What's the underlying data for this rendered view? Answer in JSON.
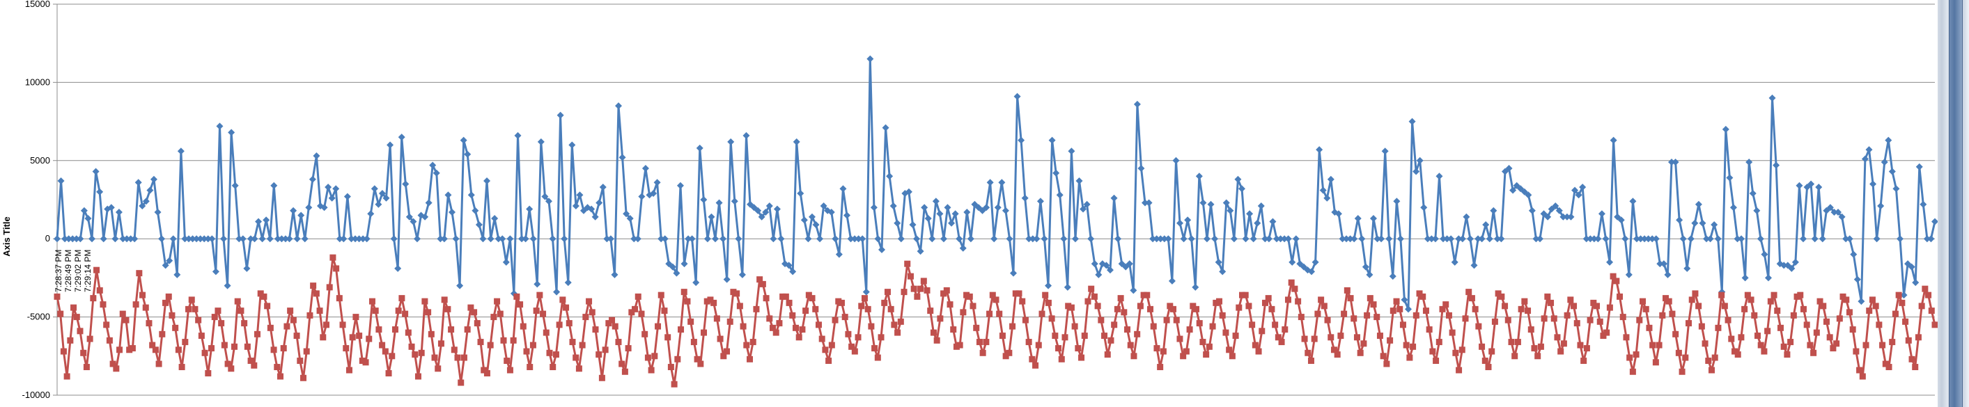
{
  "chart_data": {
    "type": "line",
    "title": "",
    "xlabel": "",
    "ylabel": "Axis Title",
    "ylim": [
      -10000,
      15000
    ],
    "yticks": [
      -10000,
      -5000,
      0,
      5000,
      10000,
      15000
    ],
    "ytick_labels": [
      "-10000",
      "-5000",
      "0",
      "5000",
      "10000",
      "15000"
    ],
    "x_tick_labels": [
      "7:28:37 PM",
      "7:28:49 PM",
      "7:29:02 PM",
      "7:29:14 PM"
    ],
    "grid": true,
    "legend": "none",
    "series": [
      {
        "color": "#4a7ebb",
        "marker": "diamond",
        "values": [
          0,
          3700,
          0,
          0,
          0,
          0,
          0,
          1800,
          1300,
          0,
          4300,
          3000,
          0,
          1900,
          2000,
          0,
          1700,
          0,
          0,
          0,
          0,
          3600,
          2100,
          2400,
          3100,
          3800,
          1700,
          0,
          -1700,
          -1400,
          0,
          -2300,
          5600,
          0,
          0,
          0,
          0,
          0,
          0,
          0,
          0,
          -2100,
          7200,
          0,
          -3000,
          6800,
          3400,
          0,
          0,
          -1900,
          0,
          0,
          1100,
          0,
          1200,
          0,
          3400,
          0,
          0,
          0,
          0,
          1800,
          0,
          1500,
          0,
          2000,
          3800,
          5300,
          2100,
          2000,
          3300,
          2600,
          3200,
          0,
          0,
          2700,
          0,
          0,
          0,
          0,
          0,
          1600,
          3200,
          2200,
          2900,
          2600,
          6000,
          0,
          -1900,
          6500,
          3500,
          1400,
          1100,
          0,
          1500,
          1400,
          2300,
          4700,
          4200,
          0,
          0,
          2800,
          1700,
          0,
          -3000,
          6300,
          5400,
          2800,
          1800,
          900,
          0,
          3700,
          0,
          1300,
          0,
          0,
          -1500,
          0,
          -3500,
          6600,
          0,
          0,
          1900,
          0,
          -2900,
          6200,
          2700,
          2400,
          0,
          -3400,
          7900,
          0,
          -2800,
          6000,
          2100,
          2800,
          1800,
          2000,
          1900,
          1400,
          2300,
          3300,
          0,
          0,
          -2300,
          8500,
          5200,
          1600,
          1300,
          0,
          0,
          2700,
          4500,
          2800,
          2900,
          3600,
          0,
          0,
          -1600,
          -1800,
          -2200,
          3400,
          -1600,
          0,
          0,
          -2800,
          5800,
          2500,
          0,
          1400,
          0,
          2300,
          0,
          -2600,
          6200,
          2400,
          0,
          -2300,
          6600,
          2200,
          2000,
          1800,
          1400,
          1700,
          2100,
          0,
          1900,
          0,
          -1600,
          -1700,
          -2100,
          6200,
          2900,
          1200,
          0,
          1400,
          900,
          0,
          2100,
          1800,
          1700,
          0,
          -1000,
          3200,
          1500,
          0,
          0,
          0,
          0,
          -3400,
          11500,
          2000,
          0,
          -700,
          7100,
          4000,
          2100,
          1000,
          0,
          2900,
          3000,
          900,
          0,
          -800,
          2000,
          1300,
          0,
          2400,
          1600,
          0,
          2000,
          1000,
          1600,
          0,
          -600,
          1700,
          0,
          2200,
          2000,
          1800,
          2000,
          3600,
          0,
          2000,
          3600,
          1800,
          0,
          -2200,
          9100,
          6300,
          2600,
          0,
          0,
          0,
          2400,
          0,
          -3000,
          6300,
          4200,
          2800,
          0,
          -3100,
          5600,
          0,
          3700,
          1900,
          2200,
          0,
          -1600,
          -2300,
          -1600,
          -1700,
          -2000,
          2600,
          0,
          -1600,
          -1800,
          -1600,
          -3300,
          8600,
          4500,
          2300,
          2300,
          0,
          0,
          0,
          0,
          0,
          -2700,
          5000,
          1000,
          0,
          1200,
          0,
          -3100,
          4000,
          2300,
          0,
          2200,
          0,
          -1500,
          -2100,
          2300,
          1800,
          0,
          3800,
          3200,
          0,
          1600,
          0,
          1000,
          2100,
          0,
          0,
          1100,
          0,
          0,
          0,
          0,
          -1500,
          0,
          -1600,
          -1800,
          -2000,
          -2100,
          -1500,
          5700,
          3100,
          2600,
          3800,
          1700,
          1600,
          0,
          0,
          0,
          0,
          1300,
          0,
          -1800,
          -2300,
          1300,
          0,
          0,
          5600,
          0,
          -2400,
          2400,
          0,
          -3900,
          -4500,
          7500,
          4300,
          5000,
          2000,
          0,
          0,
          0,
          4000,
          0,
          0,
          0,
          -1500,
          0,
          0,
          1400,
          0,
          -1700,
          0,
          0,
          900,
          0,
          1800,
          0,
          0,
          4300,
          4500,
          3100,
          3400,
          3200,
          3000,
          2800,
          1800,
          0,
          0,
          1600,
          1400,
          1900,
          2100,
          1800,
          1400,
          1400,
          1400,
          3100,
          2800,
          3300,
          0,
          0,
          0,
          0,
          1600,
          0,
          -1500,
          6300,
          1400,
          1200,
          0,
          -2300,
          2400,
          0,
          0,
          0,
          0,
          0,
          0,
          -1600,
          -1600,
          -2300,
          4900,
          4900,
          1200,
          0,
          -1900,
          0,
          1000,
          2200,
          1000,
          0,
          0,
          900,
          0,
          -3400,
          7000,
          3900,
          2000,
          0,
          0,
          -2500,
          4900,
          2900,
          1800,
          0,
          -1000,
          -2500,
          9000,
          4700,
          -1600,
          -1700,
          -1700,
          -1900,
          -1500,
          3400,
          0,
          3300,
          3500,
          0,
          3300,
          0,
          1800,
          2000,
          1700,
          1700,
          1400,
          0,
          0,
          -1000,
          -2600,
          -4000,
          5100,
          5700,
          3500,
          0,
          2100,
          4900,
          6300,
          4300,
          3200,
          0,
          -3600,
          -1600,
          -1800,
          -2800,
          4600,
          2200,
          0,
          0,
          1100
        ]
      },
      {
        "color": "#c0504d",
        "marker": "square",
        "values": [
          -3700,
          -4800,
          -7200,
          -8800,
          -6500,
          -4400,
          -5000,
          -5900,
          -7300,
          -8200,
          -6400,
          -3800,
          -2000,
          -3300,
          -4200,
          -5500,
          -6500,
          -8000,
          -8300,
          -7100,
          -4800,
          -5200,
          -7100,
          -7000,
          -4200,
          -2200,
          -3600,
          -4400,
          -5400,
          -6800,
          -7100,
          -8000,
          -6100,
          -4100,
          -3700,
          -4900,
          -5700,
          -7100,
          -8200,
          -6600,
          -4500,
          -3900,
          -4500,
          -5200,
          -6200,
          -7300,
          -8600,
          -7000,
          -5000,
          -4600,
          -5400,
          -6800,
          -8000,
          -8300,
          -6900,
          -4000,
          -4600,
          -5400,
          -6900,
          -7800,
          -8100,
          -6100,
          -3500,
          -3700,
          -4300,
          -5700,
          -7100,
          -8200,
          -8800,
          -7000,
          -5600,
          -4600,
          -5200,
          -6200,
          -7800,
          -8900,
          -7200,
          -4900,
          -3000,
          -3500,
          -4600,
          -6300,
          -5500,
          -3100,
          -1200,
          -1900,
          -3800,
          -5500,
          -7000,
          -8400,
          -6300,
          -5000,
          -6200,
          -7800,
          -7900,
          -6400,
          -4000,
          -4600,
          -5800,
          -6800,
          -7200,
          -8600,
          -7500,
          -5800,
          -4600,
          -3800,
          -4800,
          -6000,
          -6900,
          -7400,
          -8800,
          -7300,
          -4000,
          -4700,
          -6100,
          -7600,
          -8300,
          -6700,
          -3900,
          -4500,
          -5800,
          -7100,
          -7600,
          -9200,
          -7600,
          -5800,
          -4400,
          -4700,
          -5400,
          -6600,
          -8400,
          -8600,
          -6800,
          -5000,
          -4000,
          -4800,
          -6500,
          -7800,
          -8400,
          -6500,
          -3700,
          -4200,
          -5600,
          -7200,
          -8200,
          -6800,
          -4600,
          -3600,
          -4800,
          -6000,
          -7300,
          -8200,
          -7400,
          -5500,
          -3900,
          -4400,
          -5400,
          -6600,
          -7600,
          -8300,
          -6800,
          -5000,
          -4000,
          -4700,
          -5800,
          -7400,
          -8900,
          -7100,
          -5400,
          -5200,
          -5600,
          -6600,
          -8000,
          -8500,
          -7000,
          -4700,
          -4500,
          -3700,
          -4800,
          -6100,
          -7600,
          -8400,
          -7500,
          -5600,
          -3600,
          -4600,
          -6300,
          -8200,
          -9300,
          -7700,
          -5800,
          -3400,
          -4000,
          -5300,
          -6600,
          -7700,
          -8000,
          -6000,
          -4000,
          -3900,
          -4100,
          -5100,
          -6400,
          -7500,
          -7200,
          -5300,
          -3400,
          -3500,
          -4300,
          -5600,
          -6800,
          -7700,
          -6600,
          -4500,
          -2600,
          -2900,
          -3800,
          -5100,
          -5700,
          -6000,
          -5400,
          -3700,
          -3700,
          -4100,
          -4900,
          -5700,
          -6300,
          -5800,
          -4600,
          -3600,
          -3800,
          -4500,
          -5500,
          -6400,
          -7100,
          -7800,
          -6800,
          -5200,
          -4000,
          -4100,
          -5000,
          -6100,
          -6900,
          -7200,
          -6300,
          -4300,
          -3800,
          -4500,
          -5600,
          -7000,
          -7600,
          -6300,
          -4100,
          -3400,
          -4500,
          -5500,
          -6000,
          -5300,
          -3400,
          -1600,
          -2400,
          -3200,
          -3700,
          -3200,
          -2700,
          -3300,
          -4600,
          -6000,
          -6500,
          -5100,
          -3500,
          -3300,
          -4200,
          -5800,
          -6900,
          -6800,
          -4700,
          -3600,
          -3700,
          -4300,
          -5700,
          -6600,
          -7300,
          -6600,
          -4800,
          -3600,
          -3900,
          -4800,
          -6200,
          -7500,
          -7300,
          -5600,
          -3500,
          -3500,
          -4000,
          -5200,
          -6600,
          -7700,
          -8100,
          -6800,
          -4800,
          -3600,
          -4100,
          -5100,
          -6200,
          -7000,
          -7700,
          -6300,
          -4300,
          -4400,
          -5600,
          -7000,
          -7600,
          -6200,
          -4000,
          -3200,
          -3700,
          -4300,
          -5200,
          -6200,
          -7400,
          -6500,
          -5500,
          -4500,
          -3800,
          -4700,
          -5800,
          -6800,
          -7500,
          -6100,
          -4300,
          -3600,
          -3600,
          -4500,
          -5600,
          -7000,
          -8200,
          -7200,
          -5200,
          -4300,
          -4500,
          -5200,
          -6400,
          -7500,
          -7200,
          -5800,
          -4300,
          -4500,
          -5400,
          -6600,
          -7400,
          -6900,
          -5600,
          -4100,
          -4000,
          -4900,
          -6000,
          -7100,
          -7500,
          -6200,
          -4400,
          -3600,
          -3600,
          -4300,
          -5500,
          -6800,
          -7200,
          -5900,
          -4100,
          -3800,
          -4500,
          -5500,
          -6300,
          -6600,
          -5800,
          -3900,
          -2800,
          -3200,
          -4000,
          -5000,
          -6400,
          -7300,
          -7800,
          -6400,
          -4800,
          -3900,
          -4300,
          -5200,
          -6300,
          -7100,
          -7400,
          -6200,
          -4800,
          -3300,
          -3800,
          -5100,
          -6300,
          -7300,
          -6700,
          -4900,
          -3800,
          -4200,
          -5000,
          -6200,
          -7500,
          -8000,
          -6500,
          -4600,
          -4000,
          -4500,
          -5500,
          -6800,
          -7600,
          -6900,
          -4900,
          -3500,
          -3700,
          -4600,
          -5800,
          -7200,
          -7800,
          -6600,
          -4500,
          -4200,
          -4900,
          -6000,
          -7300,
          -8400,
          -7100,
          -5100,
          -3400,
          -3800,
          -4500,
          -5600,
          -6900,
          -7800,
          -8200,
          -7200,
          -5300,
          -3500,
          -3700,
          -4300,
          -5200,
          -6600,
          -7500,
          -6600,
          -4500,
          -4000,
          -4600,
          -5800,
          -7000,
          -7500,
          -6900,
          -5100,
          -3700,
          -4100,
          -5100,
          -6300,
          -7200,
          -6700,
          -4900,
          -3900,
          -4300,
          -5400,
          -6800,
          -7800,
          -7000,
          -5200,
          -4100,
          -4300,
          -5300,
          -6200,
          -6000,
          -4400,
          -2400,
          -2700,
          -3700,
          -5000,
          -6300,
          -7600,
          -8500,
          -7400,
          -5200,
          -4000,
          -4500,
          -5700,
          -6800,
          -7900,
          -6800,
          -4900,
          -3800,
          -4000,
          -4800,
          -6100,
          -7300,
          -8500,
          -7600,
          -5400,
          -3900,
          -3500,
          -4300,
          -5600,
          -6700,
          -7800,
          -8400,
          -7600,
          -5700,
          -3600,
          -4300,
          -5200,
          -6400,
          -7200,
          -7400,
          -6300,
          -4500,
          -3600,
          -3900,
          -4900,
          -6200,
          -6800,
          -7200,
          -5900,
          -4000,
          -3600,
          -4600,
          -5700,
          -6900,
          -7400,
          -6600,
          -4900,
          -3700,
          -3600,
          -4500,
          -5500,
          -6800,
          -7300,
          -6000,
          -4000,
          -4300,
          -5300,
          -6300,
          -7000,
          -6700,
          -5100,
          -3700,
          -3900,
          -4700,
          -5800,
          -7200,
          -8400,
          -8800,
          -6800,
          -4600,
          -3900,
          -4300,
          -5500,
          -6800,
          -8000,
          -8200,
          -6600,
          -4800,
          -3600,
          -4100,
          -5300,
          -6500,
          -7700,
          -8200,
          -6300,
          -4300,
          -3200,
          -3600,
          -4600,
          -5500
        ]
      }
    ]
  }
}
